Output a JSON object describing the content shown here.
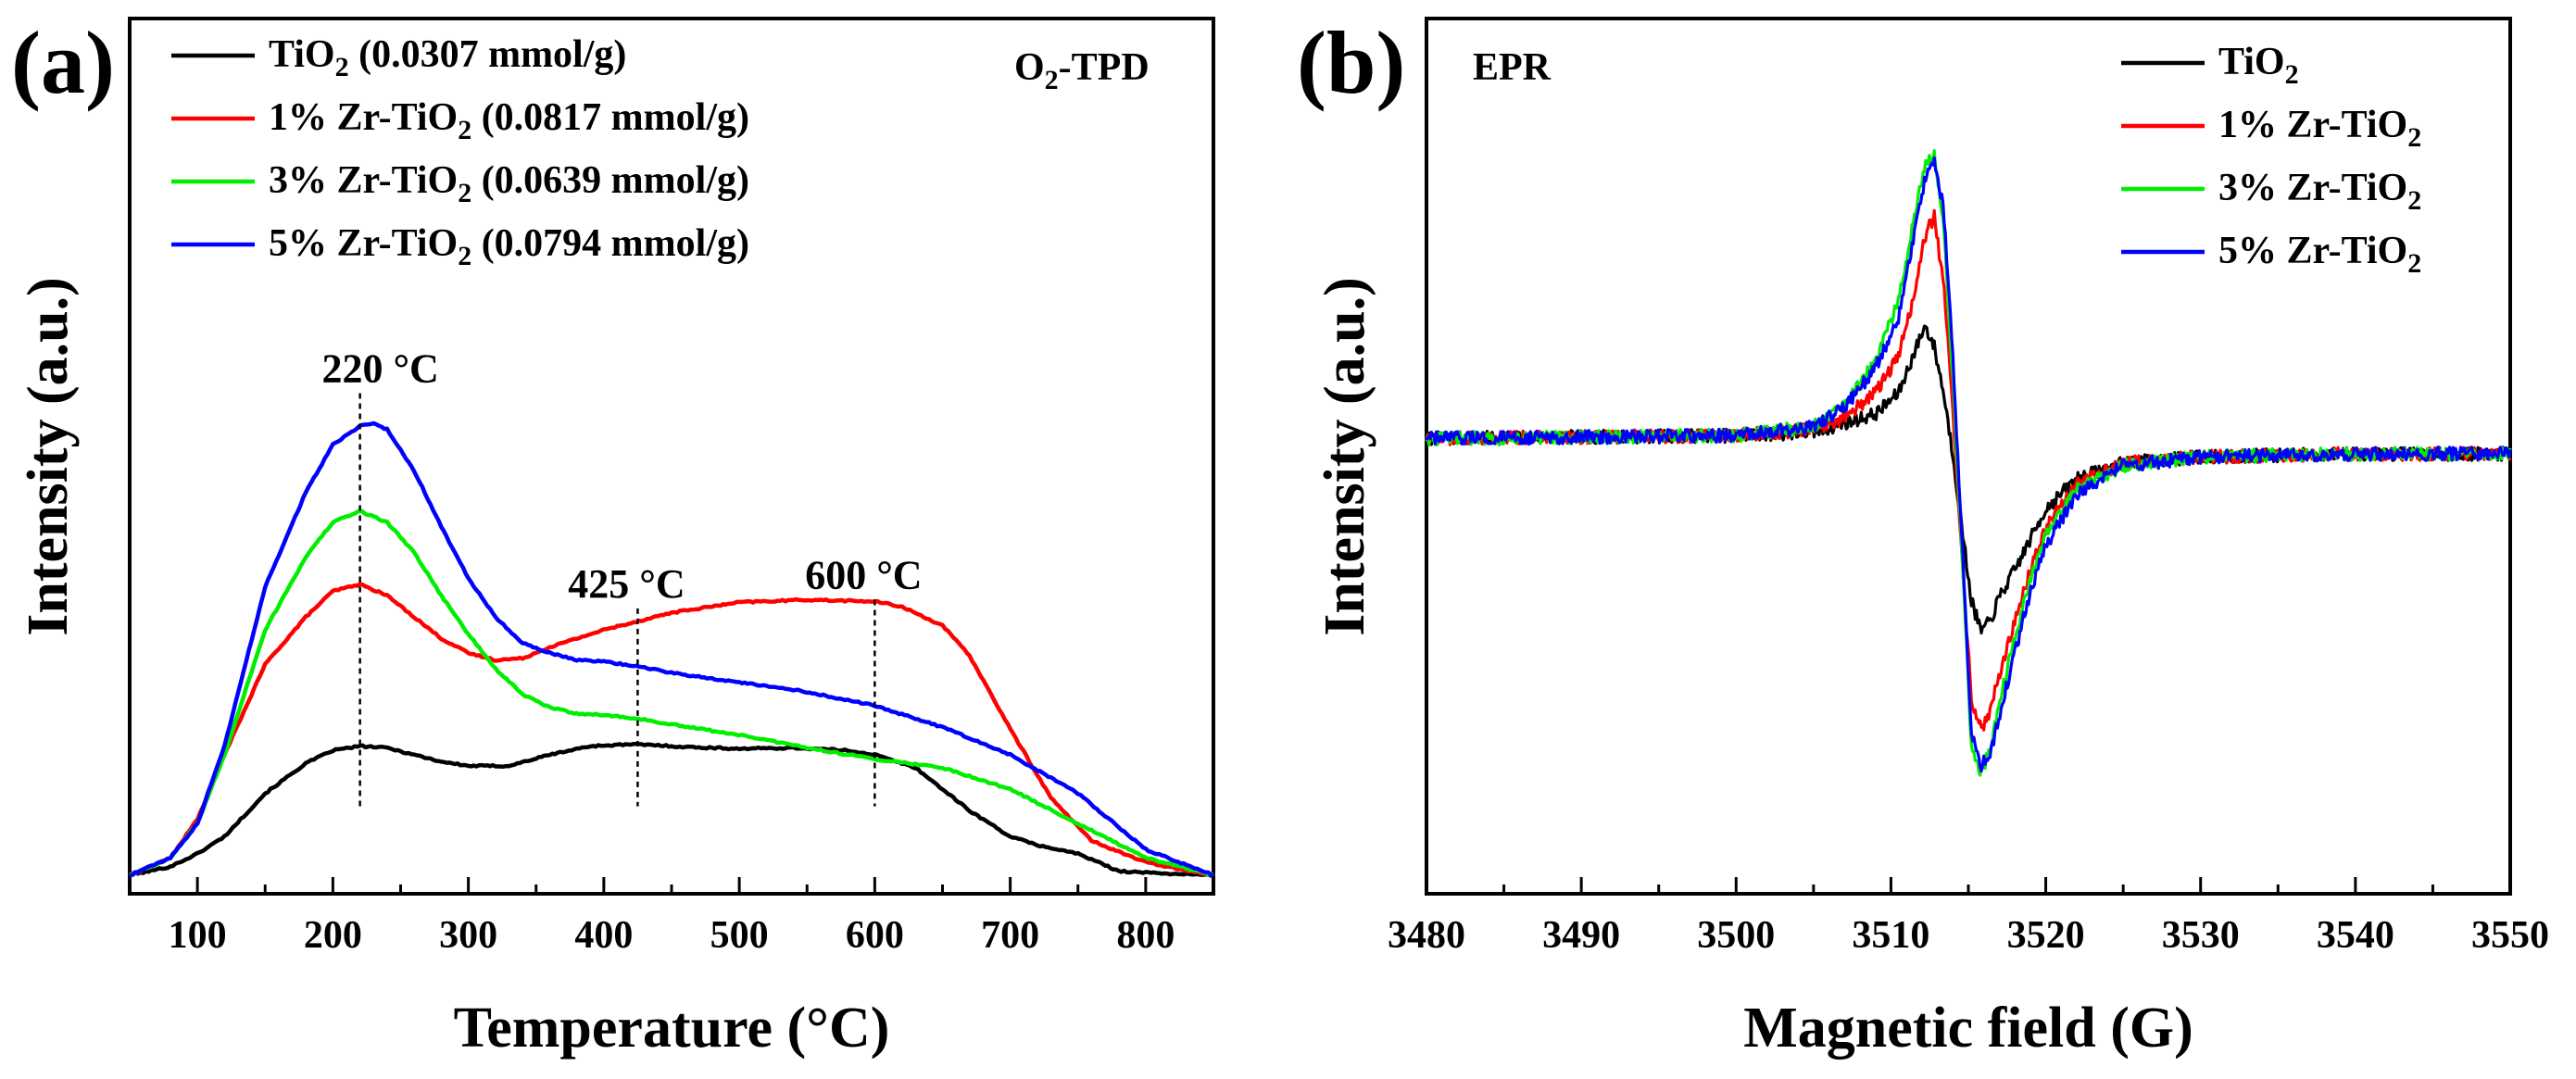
{
  "figure": {
    "panels": [
      "a",
      "b"
    ]
  },
  "chart_data": [
    {
      "id": "a",
      "panel_label": "(a)",
      "type": "line",
      "title": "O₂-TPD",
      "title_parts": {
        "main": "O",
        "sub": "2",
        "rest": "-TPD"
      },
      "xlabel": "Temperature (°C)",
      "ylabel": "Intensity (a.u.)",
      "xlim": [
        50,
        850
      ],
      "ylim": [
        0,
        1
      ],
      "xticks": [
        100,
        200,
        300,
        400,
        500,
        600,
        700,
        800
      ],
      "xtick_labels": [
        "100",
        "200",
        "300",
        "400",
        "500",
        "600",
        "700",
        "800"
      ],
      "y_ticks_shown": false,
      "legend_position": "top-left",
      "annotations": [
        {
          "text": "220 °C",
          "x": 220
        },
        {
          "text": "425 °C",
          "x": 425
        },
        {
          "text": "600 °C",
          "x": 600
        }
      ],
      "series": [
        {
          "name": "TiO2 (0.0307 mmol/g)",
          "label_parts": {
            "main": "TiO",
            "sub": "2",
            "rest": " (0.0307 mmol/g)"
          },
          "color": "#000000",
          "x": [
            50,
            80,
            100,
            120,
            150,
            180,
            200,
            220,
            240,
            260,
            280,
            300,
            330,
            360,
            390,
            420,
            440,
            460,
            500,
            540,
            580,
            600,
            630,
            650,
            670,
            700,
            720,
            750,
            780,
            800,
            850
          ],
          "y": [
            0.0,
            0.01,
            0.025,
            0.045,
            0.095,
            0.13,
            0.145,
            0.15,
            0.148,
            0.14,
            0.132,
            0.127,
            0.127,
            0.14,
            0.15,
            0.152,
            0.151,
            0.149,
            0.147,
            0.148,
            0.145,
            0.14,
            0.125,
            0.1,
            0.075,
            0.045,
            0.035,
            0.025,
            0.005,
            0.003,
            0.0
          ]
        },
        {
          "name": "1% Zr-TiO2 (0.0817 mmol/g)",
          "label_parts": {
            "main": "1% Zr-TiO",
            "sub": "2",
            "rest": " (0.0817 mmol/g)"
          },
          "color": "#ff0000",
          "x": [
            50,
            80,
            100,
            120,
            150,
            180,
            200,
            220,
            240,
            260,
            280,
            300,
            320,
            340,
            360,
            400,
            450,
            500,
            550,
            600,
            620,
            650,
            670,
            700,
            730,
            760,
            800,
            850
          ],
          "y": [
            0.0,
            0.02,
            0.065,
            0.14,
            0.245,
            0.3,
            0.33,
            0.338,
            0.325,
            0.3,
            0.275,
            0.258,
            0.25,
            0.252,
            0.265,
            0.285,
            0.305,
            0.317,
            0.32,
            0.318,
            0.312,
            0.29,
            0.255,
            0.17,
            0.09,
            0.04,
            0.015,
            0.0
          ]
        },
        {
          "name": "3% Zr-TiO2 (0.0639 mmol/g)",
          "label_parts": {
            "main": "3% Zr-TiO",
            "sub": "2",
            "rest": " (0.0639 mmol/g)"
          },
          "color": "#00ee00",
          "x": [
            50,
            80,
            100,
            120,
            150,
            180,
            200,
            220,
            240,
            260,
            280,
            300,
            320,
            340,
            360,
            380,
            400,
            425,
            450,
            500,
            550,
            600,
            650,
            700,
            750,
            800,
            850
          ],
          "y": [
            0.0,
            0.02,
            0.06,
            0.14,
            0.285,
            0.37,
            0.41,
            0.423,
            0.41,
            0.375,
            0.325,
            0.28,
            0.24,
            0.21,
            0.195,
            0.188,
            0.186,
            0.182,
            0.175,
            0.163,
            0.148,
            0.135,
            0.125,
            0.1,
            0.06,
            0.02,
            0.0
          ]
        },
        {
          "name": "5% Zr-TiO2 (0.0794 mmol/g)",
          "label_parts": {
            "main": "5% Zr-TiO",
            "sub": "2",
            "rest": " (0.0794 mmol/g)"
          },
          "color": "#0000ff",
          "x": [
            50,
            80,
            100,
            120,
            150,
            180,
            200,
            220,
            230,
            240,
            260,
            280,
            300,
            320,
            340,
            360,
            380,
            400,
            425,
            450,
            500,
            550,
            600,
            650,
            700,
            750,
            800,
            850
          ],
          "y": [
            0.0,
            0.02,
            0.06,
            0.15,
            0.335,
            0.445,
            0.5,
            0.522,
            0.525,
            0.518,
            0.47,
            0.405,
            0.345,
            0.3,
            0.27,
            0.258,
            0.25,
            0.248,
            0.243,
            0.235,
            0.224,
            0.213,
            0.197,
            0.172,
            0.14,
            0.095,
            0.03,
            0.0
          ]
        }
      ]
    },
    {
      "id": "b",
      "panel_label": "(b)",
      "type": "line",
      "title": "EPR",
      "xlabel": "Magnetic field (G)",
      "ylabel": "Intensity (a.u.)",
      "xlim": [
        3480,
        3550
      ],
      "ylim": [
        -1,
        1
      ],
      "xticks": [
        3480,
        3490,
        3500,
        3510,
        3520,
        3530,
        3540,
        3550
      ],
      "xtick_labels": [
        "3480",
        "3490",
        "3500",
        "3510",
        "3520",
        "3530",
        "3540",
        "3550"
      ],
      "y_ticks_shown": false,
      "legend_position": "top-right",
      "noise_amplitude": 0.022,
      "series": [
        {
          "name": "TiO2",
          "label_parts": {
            "main": "TiO",
            "sub": "2",
            "rest": ""
          },
          "color": "#000000",
          "x": [
            3480,
            3500,
            3505,
            3507,
            3509,
            3510.5,
            3511.5,
            3512.2,
            3512.8,
            3513.4,
            3514,
            3514.6,
            3515.2,
            3515.8,
            3516.4,
            3517,
            3518,
            3519,
            3520,
            3522,
            3525,
            3530,
            3540,
            3550
          ],
          "y": [
            0.05,
            0.06,
            0.07,
            0.1,
            0.13,
            0.2,
            0.33,
            0.42,
            0.35,
            0.2,
            0.0,
            -0.25,
            -0.48,
            -0.58,
            -0.55,
            -0.47,
            -0.38,
            -0.28,
            -0.18,
            -0.08,
            -0.03,
            -0.01,
            0.0,
            0.0
          ]
        },
        {
          "name": "1% Zr-TiO2",
          "label_parts": {
            "main": "1% Zr-TiO",
            "sub": "2",
            "rest": ""
          },
          "color": "#ff0000",
          "x": [
            3480,
            3500,
            3505,
            3507,
            3509,
            3510.5,
            3511.5,
            3512.2,
            3512.8,
            3513.4,
            3514,
            3514.6,
            3515.2,
            3515.8,
            3516.4,
            3517,
            3518,
            3519,
            3520,
            3522,
            3525,
            3530,
            3540,
            3550
          ],
          "y": [
            0.05,
            0.06,
            0.08,
            0.12,
            0.2,
            0.32,
            0.52,
            0.71,
            0.78,
            0.55,
            0.15,
            -0.35,
            -0.8,
            -0.9,
            -0.85,
            -0.72,
            -0.55,
            -0.38,
            -0.24,
            -0.1,
            -0.03,
            -0.01,
            0.0,
            0.0
          ]
        },
        {
          "name": "3% Zr-TiO2",
          "label_parts": {
            "main": "3% Zr-TiO",
            "sub": "2",
            "rest": ""
          },
          "color": "#00ee00",
          "x": [
            3480,
            3500,
            3505,
            3507,
            3509,
            3510.5,
            3511.5,
            3512.2,
            3512.8,
            3513.4,
            3514,
            3514.6,
            3515.2,
            3515.8,
            3516.4,
            3517,
            3518,
            3519,
            3520,
            3522,
            3525,
            3530,
            3540,
            3550
          ],
          "y": [
            0.05,
            0.06,
            0.09,
            0.16,
            0.3,
            0.5,
            0.78,
            0.95,
            0.98,
            0.75,
            0.25,
            -0.35,
            -0.95,
            -1.04,
            -0.97,
            -0.82,
            -0.6,
            -0.42,
            -0.27,
            -0.12,
            -0.04,
            -0.01,
            0.0,
            0.0
          ]
        },
        {
          "name": "5% Zr-TiO2",
          "label_parts": {
            "main": "5% Zr-TiO",
            "sub": "2",
            "rest": ""
          },
          "color": "#0000ff",
          "x": [
            3480,
            3500,
            3505,
            3507,
            3509,
            3510.5,
            3511.5,
            3512.2,
            3512.8,
            3513.4,
            3514,
            3514.6,
            3515.2,
            3515.8,
            3516.4,
            3517,
            3518,
            3519,
            3520,
            3522,
            3525,
            3530,
            3540,
            3550
          ],
          "y": [
            0.05,
            0.06,
            0.09,
            0.15,
            0.28,
            0.45,
            0.72,
            0.9,
            0.96,
            0.8,
            0.32,
            -0.3,
            -0.92,
            -1.02,
            -0.98,
            -0.86,
            -0.65,
            -0.45,
            -0.3,
            -0.13,
            -0.04,
            -0.01,
            0.0,
            0.0
          ]
        }
      ]
    }
  ]
}
